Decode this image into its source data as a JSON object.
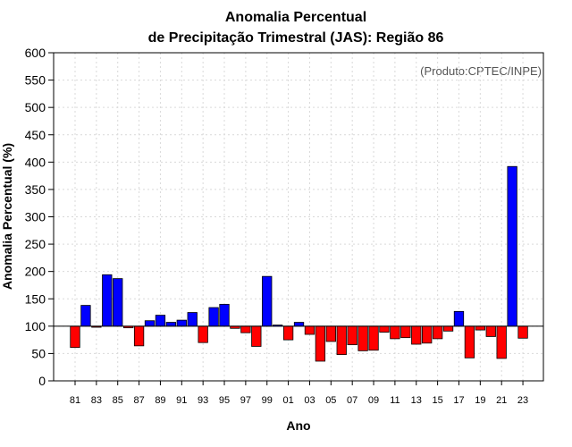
{
  "chart_data": {
    "type": "bar",
    "title_line1": "Anomalia Percentual",
    "title_line2": "de Precipitação Trimestral (JAS): Região 86",
    "xlabel": "Ano",
    "ylabel": "Anomalia Percentual (%)",
    "credit": "(Produto:CPTEC/INPE)",
    "ylim": [
      0,
      600
    ],
    "yticks": [
      0,
      50,
      100,
      150,
      200,
      250,
      300,
      350,
      400,
      450,
      500,
      550,
      600
    ],
    "baseline": 100,
    "grid": true,
    "colors": {
      "above": "#0000ff",
      "below": "#ff0000",
      "edge": "#000000"
    },
    "categories": [
      "81",
      "82",
      "83",
      "84",
      "85",
      "86",
      "87",
      "88",
      "89",
      "90",
      "91",
      "92",
      "93",
      "94",
      "95",
      "96",
      "97",
      "98",
      "99",
      "00",
      "01",
      "02",
      "03",
      "04",
      "05",
      "06",
      "07",
      "08",
      "09",
      "10",
      "11",
      "12",
      "13",
      "14",
      "15",
      "16",
      "17",
      "18",
      "19",
      "20",
      "21",
      "22",
      "23"
    ],
    "xtick_labels": [
      "81",
      "83",
      "85",
      "87",
      "89",
      "91",
      "93",
      "95",
      "97",
      "99",
      "01",
      "03",
      "05",
      "07",
      "09",
      "11",
      "13",
      "15",
      "17",
      "19",
      "21",
      "23"
    ],
    "values": [
      61,
      138,
      98,
      194,
      187,
      97,
      64,
      110,
      120,
      107,
      111,
      125,
      70,
      134,
      140,
      96,
      88,
      63,
      191,
      102,
      75,
      107,
      85,
      36,
      72,
      48,
      66,
      55,
      56,
      89,
      77,
      79,
      67,
      69,
      77,
      91,
      127,
      42,
      93,
      81,
      41,
      392,
      78
    ]
  }
}
